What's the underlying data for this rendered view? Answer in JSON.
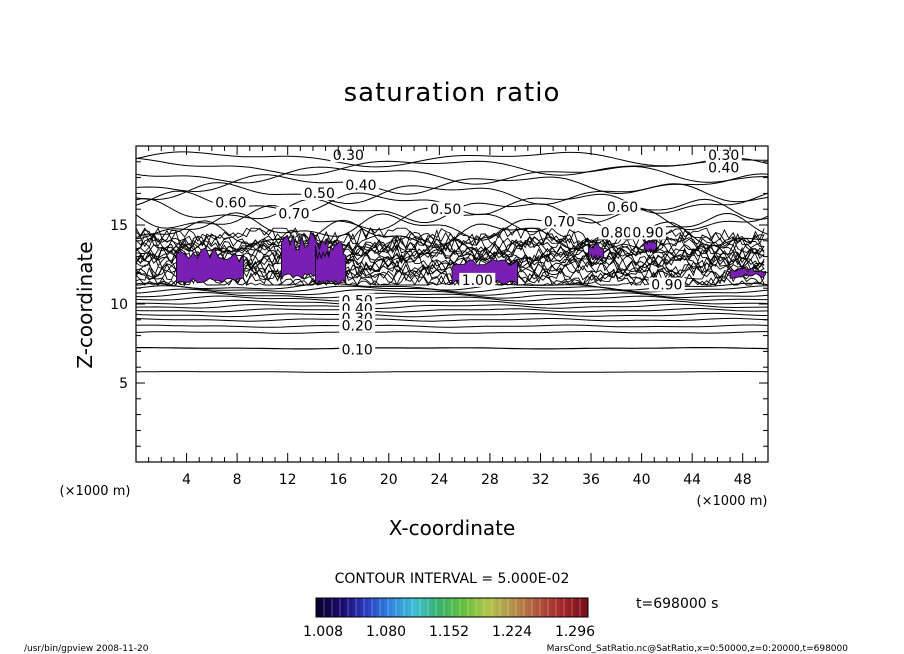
{
  "chart_data": {
    "type": "contour",
    "title": "saturation ratio",
    "xlabel": "X-coordinate",
    "ylabel": "Z-coordinate",
    "x_unit": "(×1000 m)",
    "y_unit": "(×1000 m)",
    "xlim": [
      0,
      50
    ],
    "ylim": [
      0,
      20
    ],
    "x_ticks": [
      4,
      8,
      12,
      16,
      20,
      24,
      28,
      32,
      36,
      40,
      44,
      48
    ],
    "y_ticks": [
      5,
      10,
      15
    ],
    "contour_interval_text": "CONTOUR INTERVAL = 5.000E-02",
    "time_text": "t=698000 s",
    "contour_labels": [
      {
        "text": "0.30",
        "x": 16.8,
        "y": 19.3
      },
      {
        "text": "0.30",
        "x": 46.5,
        "y": 19.3
      },
      {
        "text": "0.40",
        "x": 46.5,
        "y": 18.5
      },
      {
        "text": "0.40",
        "x": 17.8,
        "y": 17.4
      },
      {
        "text": "0.50",
        "x": 14.5,
        "y": 16.9
      },
      {
        "text": "0.60",
        "x": 7.5,
        "y": 16.3
      },
      {
        "text": "0.50",
        "x": 24.5,
        "y": 15.9
      },
      {
        "text": "0.60",
        "x": 38.5,
        "y": 16.0
      },
      {
        "text": "0.70",
        "x": 12.5,
        "y": 15.6
      },
      {
        "text": "0.70",
        "x": 33.5,
        "y": 15.1
      },
      {
        "text": "0.80",
        "x": 38.0,
        "y": 14.4
      },
      {
        "text": "0.90",
        "x": 40.5,
        "y": 14.4
      },
      {
        "text": "1.00",
        "x": 27.0,
        "y": 11.4
      },
      {
        "text": "0.90",
        "x": 42.0,
        "y": 11.1
      },
      {
        "text": "0.50",
        "x": 17.5,
        "y": 10.1
      },
      {
        "text": "0.40",
        "x": 17.5,
        "y": 9.6
      },
      {
        "text": "0.30",
        "x": 17.5,
        "y": 9.0
      },
      {
        "text": "0.20",
        "x": 17.5,
        "y": 8.5
      },
      {
        "text": "0.10",
        "x": 17.5,
        "y": 7.0
      }
    ],
    "colorbar": {
      "ticks": [
        "1.008",
        "1.080",
        "1.152",
        "1.224",
        "1.296"
      ],
      "colors": [
        "#0b0130",
        "#1a0a6e",
        "#2a3dc2",
        "#2f86e0",
        "#3fbfcf",
        "#39b36a",
        "#66c23d",
        "#b3c44c",
        "#b3904a",
        "#b0553d",
        "#a3262a",
        "#7a0f1e"
      ]
    },
    "supersat_color": "#7a1fb4"
  },
  "footer": {
    "program": "/usr/bin/gpview   2008-11-20",
    "source": "MarsCond_SatRatio.nc@SatRatio,x=0:50000,z=0:20000,t=698000"
  }
}
